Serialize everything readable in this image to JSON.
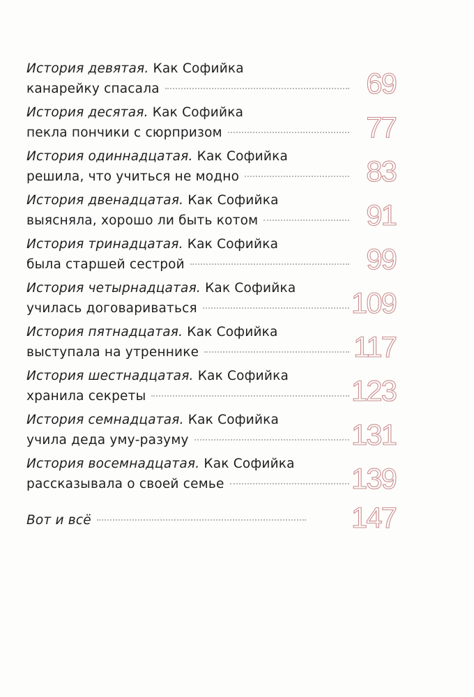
{
  "toc": [
    {
      "story": "История девятая.",
      "line1": " Как Софийка",
      "line2": "канарейку спасала",
      "page": "69"
    },
    {
      "story": "История десятая.",
      "line1": " Как Софийка",
      "line2": "пекла пончики с сюрпризом",
      "page": "77"
    },
    {
      "story": "История одиннадцатая.",
      "line1": " Как Софийка",
      "line2": "решила, что учиться не модно",
      "page": "83"
    },
    {
      "story": "История двенадцатая.",
      "line1": " Как Софийка",
      "line2": "выясняла, хорошо ли быть котом",
      "page": "91"
    },
    {
      "story": "История тринадцатая.",
      "line1": " Как Софийка",
      "line2": "была старшей сестрой",
      "page": "99"
    },
    {
      "story": "История четырнадцатая.",
      "line1": " Как Софийка",
      "line2": "училась договариваться",
      "page": "109"
    },
    {
      "story": "История пятнадцатая.",
      "line1": " Как Софийка",
      "line2": "выступала на утреннике",
      "page": "117"
    },
    {
      "story": "История шестнадцатая.",
      "line1": " Как Софийка",
      "line2": "хранила секреты",
      "page": "123"
    },
    {
      "story": "История семнадцатая.",
      "line1": " Как Софийка",
      "line2": "учила деда уму-разуму",
      "page": "131"
    },
    {
      "story": "История восемнадцатая.",
      "line1": " Как Софийка",
      "line2": "рассказывала о своей семье",
      "page": "139"
    }
  ],
  "final": {
    "story": "Вот и всё",
    "page": "147"
  },
  "colors": {
    "page_number": "#c98e8e",
    "text": "#1e1e1e"
  }
}
